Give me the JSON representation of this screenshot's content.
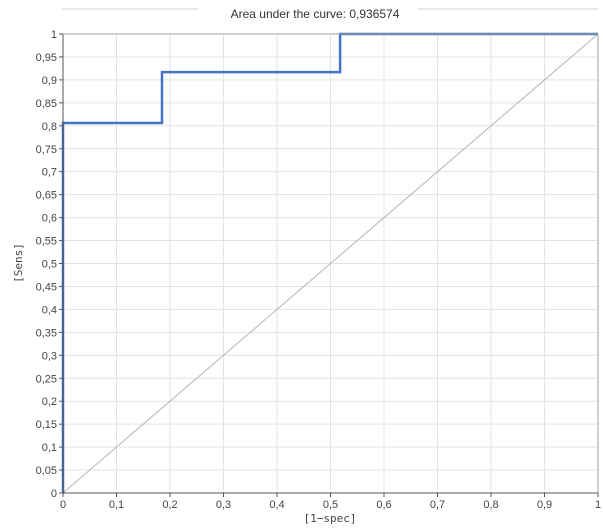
{
  "chart_data": {
    "type": "line",
    "title": "Area under the curve: 0,936574",
    "xlabel": "[1−spec]",
    "ylabel": "[Sens]",
    "xlim": [
      0,
      1
    ],
    "ylim": [
      0,
      1
    ],
    "grid": true,
    "x_tick_labels": [
      "0",
      "0,1",
      "0,2",
      "0,3",
      "0,4",
      "0,5",
      "0,6",
      "0,7",
      "0,8",
      "0,9",
      "1"
    ],
    "y_tick_labels": [
      "0",
      "0,05",
      "0,1",
      "0,15",
      "0,2",
      "0,25",
      "0,3",
      "0,35",
      "0,4",
      "0,45",
      "0,5",
      "0,55",
      "0,6",
      "0,65",
      "0,7",
      "0,75",
      "0,8",
      "0,85",
      "0,9",
      "0,95",
      "1"
    ],
    "series": [
      {
        "style": "step",
        "color": "#4472c4",
        "x": [
          0,
          0,
          0.185,
          0.185,
          0.518,
          0.518,
          1
        ],
        "y": [
          0,
          0.806,
          0.806,
          0.917,
          0.917,
          1,
          1
        ]
      },
      {
        "style": "reference-diagonal",
        "color": "#b5b5b5",
        "x": [
          0,
          1
        ],
        "y": [
          0,
          1
        ]
      }
    ]
  }
}
